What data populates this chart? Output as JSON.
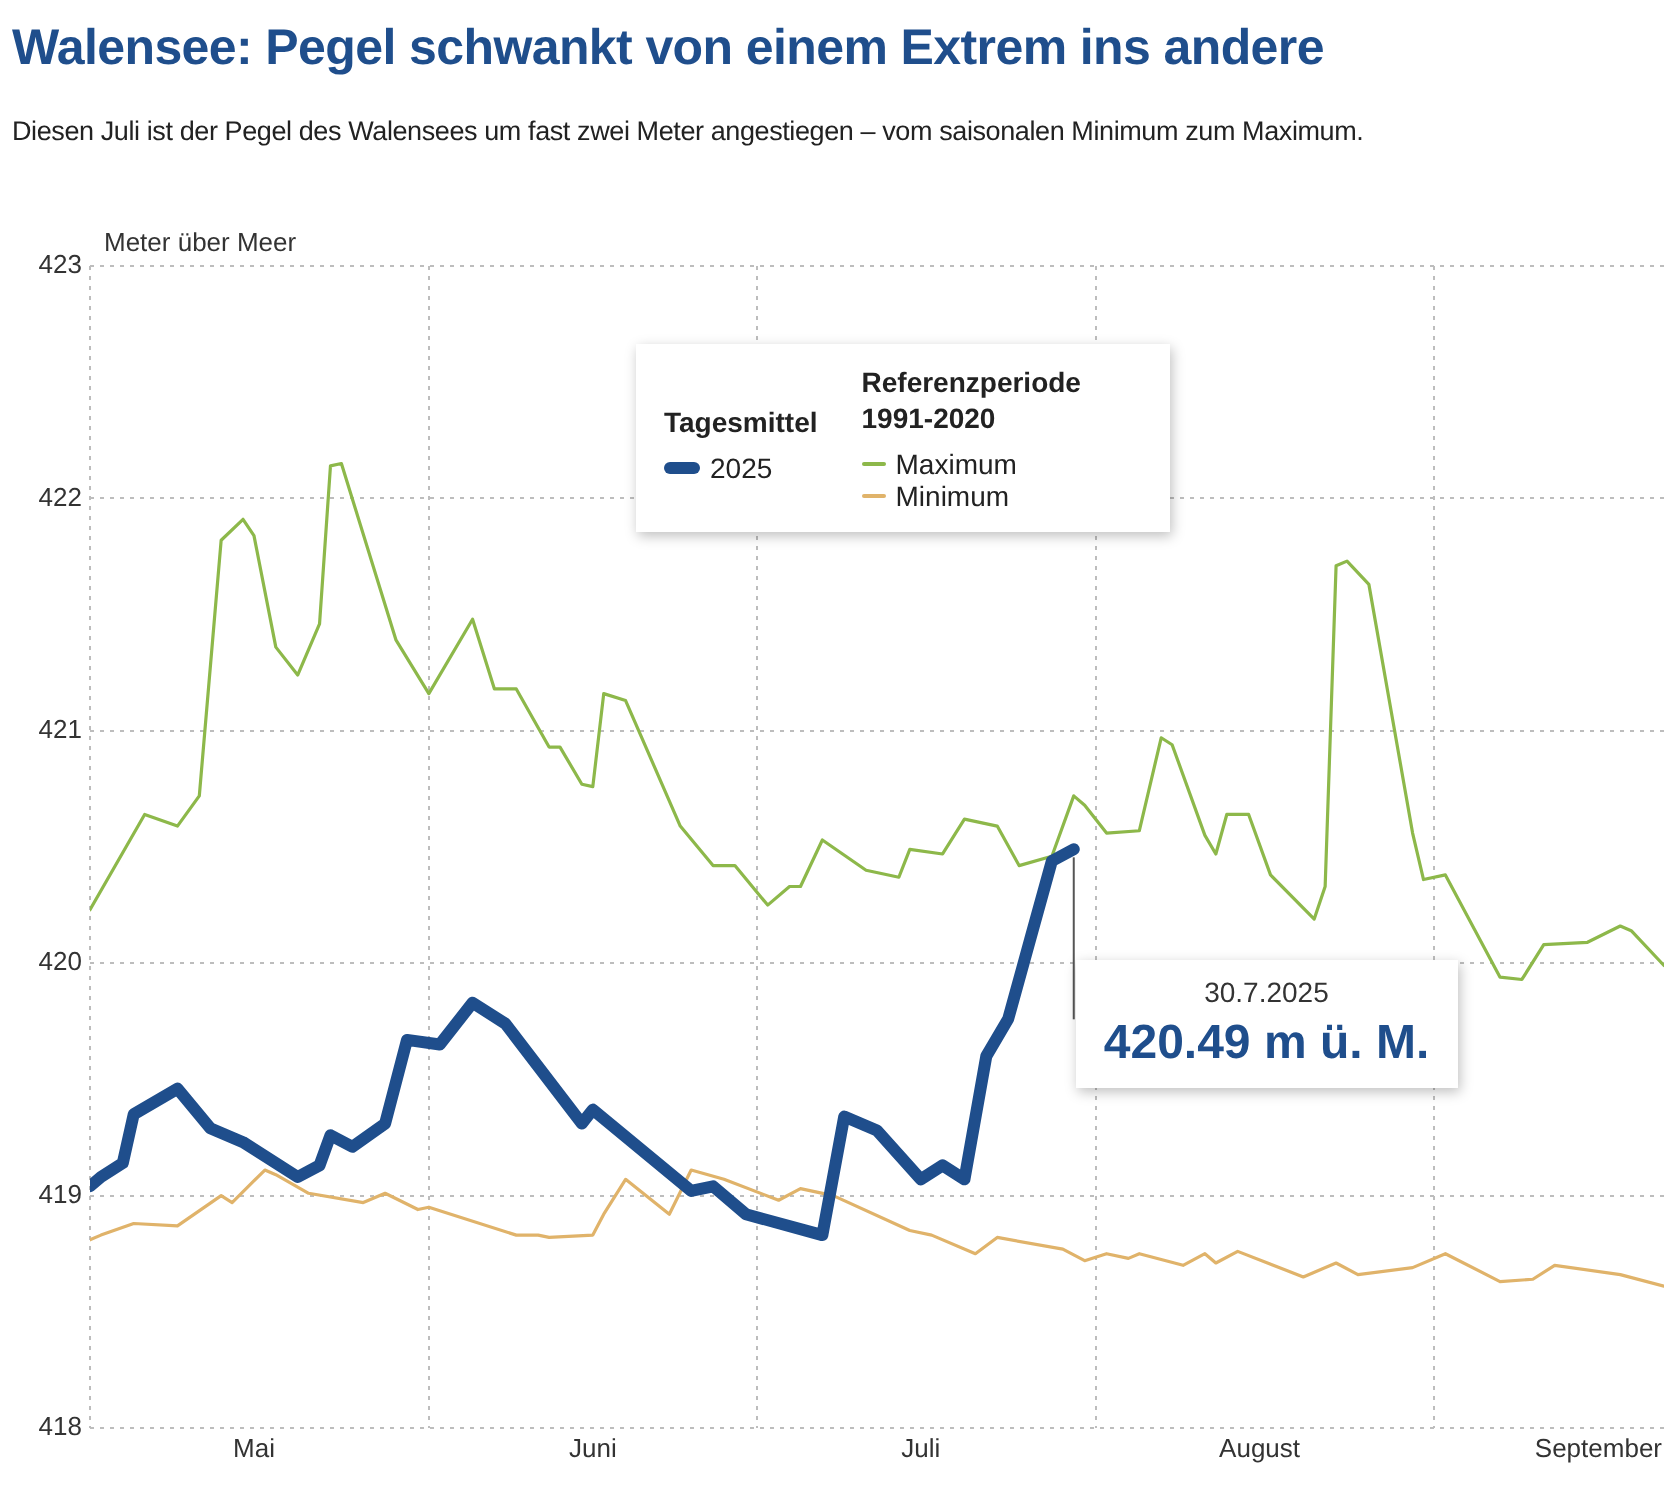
{
  "chart_data": {
    "type": "line",
    "title": "Walensee: Pegel schwankt von einem Extrem ins andere",
    "subtitle": "Diesen Juli ist der Pegel des Walensees um fast zwei Meter angestiegen – vom saisonalen Minimum zum Maximum.",
    "ylabel": "Meter über Meer",
    "legend_title": "Tagesmittel",
    "legend": "top",
    "grid": true,
    "marker": "none",
    "line_style": "solid",
    "xlim": [
      "2025-05-01",
      "2025-09-22"
    ],
    "xticks": [
      {
        "value": "2025-05-01",
        "label": null
      },
      {
        "value": "2025-05-16",
        "label": "Mai"
      },
      {
        "value": "2025-06-01",
        "label": null
      },
      {
        "value": "2025-06-16",
        "label": "Juni"
      },
      {
        "value": "2025-07-01",
        "label": null
      },
      {
        "value": "2025-07-16",
        "label": "Juli"
      },
      {
        "value": "2025-08-01",
        "label": null
      },
      {
        "value": "2025-08-16",
        "label": "August"
      },
      {
        "value": "2025-09-01",
        "label": null
      },
      {
        "value": "2025-09-16",
        "label": "September"
      }
    ],
    "ylim": [
      418,
      423
    ],
    "yticks": [
      418,
      419,
      420,
      421,
      422,
      423
    ],
    "annotations": [
      "Referenzperiode 1991-2020",
      "30.7.2025",
      {
        "text": "420.49 m ü. M.",
        "x": "2025-07-30",
        "y": 420.49
      }
    ],
    "series": [
      {
        "name": "2025",
        "color": "#1f4e8c",
        "x": [
          "2025-05-01",
          "2025-05-02",
          "2025-05-04",
          "2025-05-05",
          "2025-05-09",
          "2025-05-12",
          "2025-05-15",
          "2025-05-20",
          "2025-05-22",
          "2025-05-23",
          "2025-05-25",
          "2025-05-28",
          "2025-05-30",
          "2025-06-02",
          "2025-06-05",
          "2025-06-08",
          "2025-06-15",
          "2025-06-16",
          "2025-06-25",
          "2025-06-27",
          "2025-06-30",
          "2025-07-07",
          "2025-07-09",
          "2025-07-12",
          "2025-07-16",
          "2025-07-18",
          "2025-07-20",
          "2025-07-22",
          "2025-07-24",
          "2025-07-26",
          "2025-07-28",
          "2025-07-30"
        ],
        "values": [
          419.04,
          419.08,
          419.14,
          419.35,
          419.46,
          419.29,
          419.23,
          419.08,
          419.13,
          419.26,
          419.21,
          419.31,
          419.67,
          419.65,
          419.83,
          419.74,
          419.31,
          419.37,
          419.02,
          419.04,
          418.92,
          418.83,
          419.34,
          419.28,
          419.07,
          419.13,
          419.07,
          419.6,
          419.76,
          420.1,
          420.44,
          420.49
        ]
      },
      {
        "name": "Maximum",
        "color": "#8db84a",
        "x": [
          "2025-05-01",
          "2025-05-06",
          "2025-05-09",
          "2025-05-11",
          "2025-05-13",
          "2025-05-15",
          "2025-05-16",
          "2025-05-18",
          "2025-05-20",
          "2025-05-22",
          "2025-05-23",
          "2025-05-24",
          "2025-05-29",
          "2025-06-01",
          "2025-06-05",
          "2025-06-07",
          "2025-06-09",
          "2025-06-12",
          "2025-06-13",
          "2025-06-15",
          "2025-06-16",
          "2025-06-17",
          "2025-06-19",
          "2025-06-24",
          "2025-06-27",
          "2025-06-29",
          "2025-07-02",
          "2025-07-04",
          "2025-07-05",
          "2025-07-07",
          "2025-07-11",
          "2025-07-14",
          "2025-07-15",
          "2025-07-18",
          "2025-07-20",
          "2025-07-23",
          "2025-07-25",
          "2025-07-28",
          "2025-07-30",
          "2025-07-31",
          "2025-08-02",
          "2025-08-05",
          "2025-08-07",
          "2025-08-08",
          "2025-08-11",
          "2025-08-12",
          "2025-08-13",
          "2025-08-15",
          "2025-08-17",
          "2025-08-21",
          "2025-08-22",
          "2025-08-23",
          "2025-08-24",
          "2025-08-26",
          "2025-08-30",
          "2025-08-31",
          "2025-09-02",
          "2025-09-07",
          "2025-09-09",
          "2025-09-11",
          "2025-09-15",
          "2025-09-18",
          "2025-09-19",
          "2025-09-22"
        ],
        "values": [
          420.23,
          420.64,
          420.59,
          420.72,
          421.82,
          421.91,
          421.84,
          421.36,
          421.24,
          421.46,
          422.14,
          422.15,
          421.39,
          421.16,
          421.48,
          421.18,
          421.18,
          420.93,
          420.93,
          420.77,
          420.76,
          421.16,
          421.13,
          420.59,
          420.42,
          420.42,
          420.25,
          420.33,
          420.33,
          420.53,
          420.4,
          420.37,
          420.49,
          420.47,
          420.62,
          420.59,
          420.42,
          420.46,
          420.72,
          420.68,
          420.56,
          420.57,
          420.97,
          420.94,
          420.55,
          420.47,
          420.64,
          420.64,
          420.38,
          420.19,
          420.33,
          421.71,
          421.73,
          421.63,
          420.56,
          420.36,
          420.38,
          419.94,
          419.93,
          420.08,
          420.09,
          420.16,
          420.14,
          419.99
        ]
      },
      {
        "name": "Minimum",
        "color": "#e0b36a",
        "x": [
          "2025-05-01",
          "2025-05-02",
          "2025-05-05",
          "2025-05-09",
          "2025-05-13",
          "2025-05-14",
          "2025-05-17",
          "2025-05-18",
          "2025-05-21",
          "2025-05-26",
          "2025-05-28",
          "2025-05-31",
          "2025-06-01",
          "2025-06-09",
          "2025-06-11",
          "2025-06-12",
          "2025-06-16",
          "2025-06-17",
          "2025-06-19",
          "2025-06-23",
          "2025-06-25",
          "2025-06-28",
          "2025-07-03",
          "2025-07-05",
          "2025-07-08",
          "2025-07-15",
          "2025-07-17",
          "2025-07-21",
          "2025-07-23",
          "2025-07-29",
          "2025-07-31",
          "2025-08-02",
          "2025-08-04",
          "2025-08-05",
          "2025-08-09",
          "2025-08-11",
          "2025-08-12",
          "2025-08-14",
          "2025-08-20",
          "2025-08-23",
          "2025-08-25",
          "2025-08-30",
          "2025-09-02",
          "2025-09-07",
          "2025-09-10",
          "2025-09-12",
          "2025-09-18",
          "2025-09-22"
        ],
        "values": [
          418.81,
          418.83,
          418.88,
          418.87,
          419.0,
          418.97,
          419.11,
          419.09,
          419.01,
          418.97,
          419.01,
          418.94,
          418.95,
          418.83,
          418.83,
          418.82,
          418.83,
          418.92,
          419.07,
          418.92,
          419.11,
          419.07,
          418.98,
          419.03,
          419.0,
          418.85,
          418.83,
          418.75,
          418.82,
          418.77,
          418.72,
          418.75,
          418.73,
          418.75,
          418.7,
          418.75,
          418.71,
          418.76,
          418.65,
          418.71,
          418.66,
          418.69,
          418.75,
          418.63,
          418.64,
          418.7,
          418.66,
          418.61
        ]
      }
    ]
  }
}
